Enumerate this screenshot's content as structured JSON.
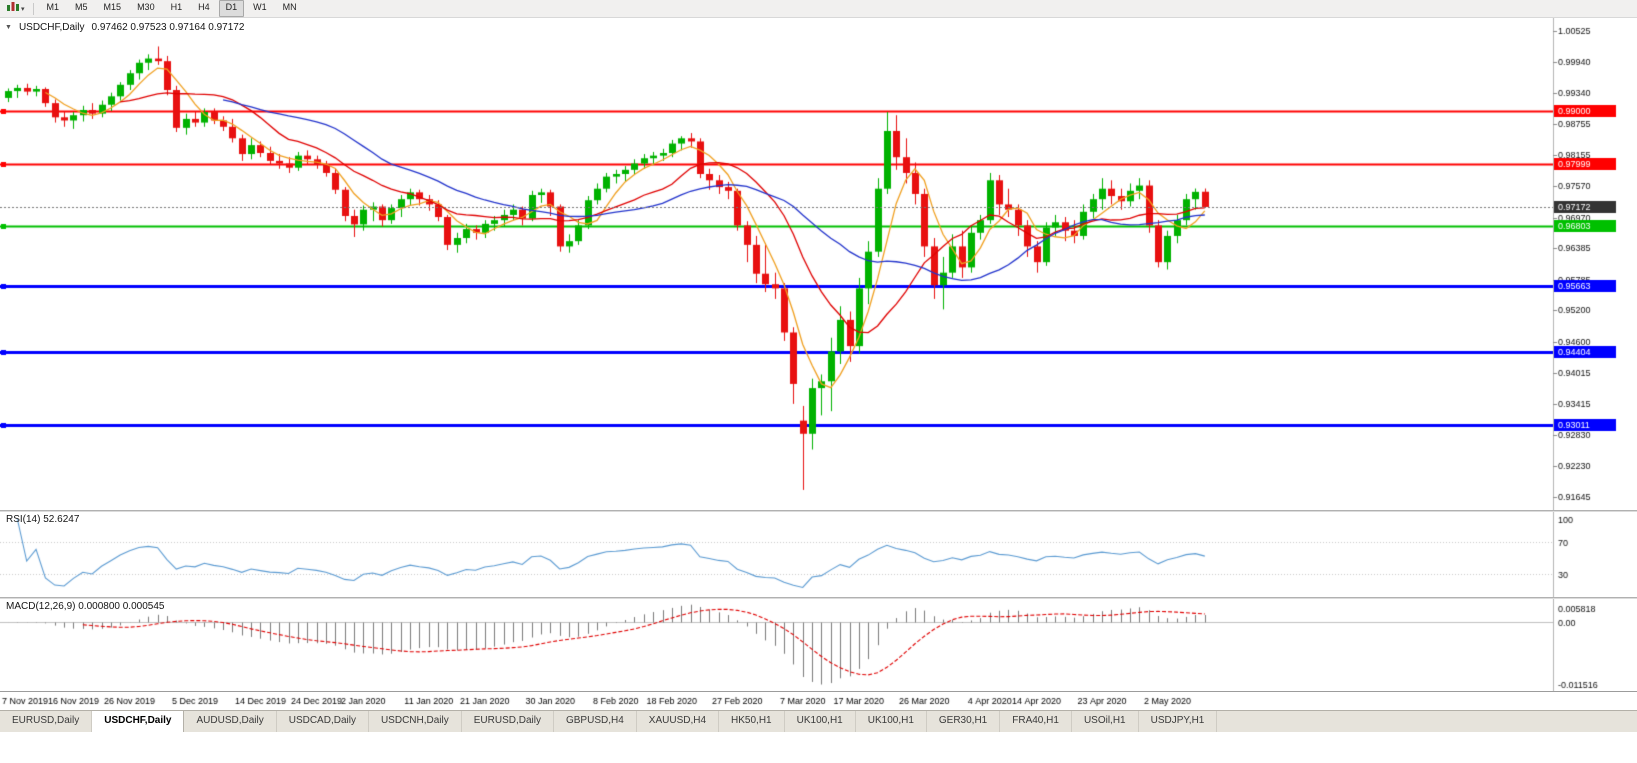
{
  "icons": {
    "collapse": "▼",
    "menu_caret": "▾"
  },
  "toolbar": {
    "timeframes": [
      "M1",
      "M5",
      "M15",
      "M30",
      "H1",
      "H4",
      "D1",
      "W1",
      "MN"
    ],
    "active_timeframe": "D1"
  },
  "chart": {
    "symbol": "USDCHF,Daily",
    "ohlc_text": "0.97462 0.97523 0.97164 0.97172",
    "open": "0.97462",
    "high": "0.97523",
    "low": "0.97164",
    "close": "0.97172",
    "bid": 0.97172,
    "bid_label": "0.97172",
    "price_axis": {
      "top_price": 1.00525,
      "bottom_price": 0.91645,
      "ticks": [
        1.00525,
        0.9994,
        0.9934,
        0.98755,
        0.98155,
        0.9757,
        0.9697,
        0.96385,
        0.95785,
        0.952,
        0.946,
        0.94015,
        0.93415,
        0.9283,
        0.9223,
        0.91645
      ]
    },
    "hlines": [
      {
        "price": 0.99,
        "label": "0.99000",
        "color": "#FF0000",
        "width": 2
      },
      {
        "price": 0.97999,
        "label": "0.97999",
        "color": "#FF0000",
        "width": 2
      },
      {
        "price": 0.96803,
        "label": "0.96803",
        "color": "#00C000",
        "width": 2
      },
      {
        "price": 0.95663,
        "label": "0.95663",
        "color": "#0000FF",
        "width": 3
      },
      {
        "price": 0.94404,
        "label": "0.94404",
        "color": "#0000FF",
        "width": 3
      },
      {
        "price": 0.93011,
        "label": "0.93011",
        "color": "#0000FF",
        "width": 3
      }
    ]
  },
  "colors": {
    "background": "#FFFFFF",
    "up_candle": "#00B200",
    "down_candle": "#E81010",
    "bid_line": "#777777",
    "bid_label_bg": "#333333",
    "axis_text": "#111111",
    "rsi_line": "#5A9AD2",
    "macd_histogram": "#7A7A7A",
    "macd_signal": "#E00000"
  },
  "chart_data": {
    "type": "candlestick",
    "symbol": "USDCHF",
    "timeframe": "Daily",
    "ylim": [
      0.91645,
      1.00525
    ],
    "x_labels": [
      {
        "label": "7 Nov 2019",
        "index": 0
      },
      {
        "label": "16 Nov 2019",
        "index": 7
      },
      {
        "label": "26 Nov 2019",
        "index": 13
      },
      {
        "label": "5 Dec 2019",
        "index": 20
      },
      {
        "label": "14 Dec 2019",
        "index": 27
      },
      {
        "label": "24 Dec 2019",
        "index": 33
      },
      {
        "label": "2 Jan 2020",
        "index": 38
      },
      {
        "label": "11 Jan 2020",
        "index": 45
      },
      {
        "label": "21 Jan 2020",
        "index": 51
      },
      {
        "label": "30 Jan 2020",
        "index": 58
      },
      {
        "label": "8 Feb 2020",
        "index": 65
      },
      {
        "label": "18 Feb 2020",
        "index": 71
      },
      {
        "label": "27 Feb 2020",
        "index": 78
      },
      {
        "label": "7 Mar 2020",
        "index": 85
      },
      {
        "label": "17 Mar 2020",
        "index": 91
      },
      {
        "label": "26 Mar 2020",
        "index": 98
      },
      {
        "label": "4 Apr 2020",
        "index": 105
      },
      {
        "label": "14 Apr 2020",
        "index": 110
      },
      {
        "label": "23 Apr 2020",
        "index": 117
      },
      {
        "label": "2 May 2020",
        "index": 124
      }
    ],
    "moving_averages": [
      {
        "period": 5,
        "color": "#F0A020"
      },
      {
        "period": 13,
        "color": "#E00000"
      },
      {
        "period": 24,
        "color": "#2233CC"
      }
    ],
    "candles": [
      [
        0.9925,
        0.9943,
        0.9917,
        0.9938
      ],
      [
        0.9938,
        0.995,
        0.9925,
        0.9944
      ],
      [
        0.9944,
        0.9952,
        0.993,
        0.9937
      ],
      [
        0.9937,
        0.9948,
        0.9928,
        0.9942
      ],
      [
        0.9942,
        0.9945,
        0.9908,
        0.9915
      ],
      [
        0.9915,
        0.9922,
        0.9878,
        0.9888
      ],
      [
        0.9888,
        0.99,
        0.987,
        0.9882
      ],
      [
        0.9882,
        0.9898,
        0.9866,
        0.9892
      ],
      [
        0.9892,
        0.991,
        0.988,
        0.9902
      ],
      [
        0.9902,
        0.9915,
        0.9885,
        0.9895
      ],
      [
        0.9895,
        0.992,
        0.9888,
        0.9912
      ],
      [
        0.9912,
        0.9935,
        0.99,
        0.9928
      ],
      [
        0.9928,
        0.9955,
        0.992,
        0.995
      ],
      [
        0.995,
        0.9978,
        0.994,
        0.9972
      ],
      [
        0.9972,
        0.9998,
        0.996,
        0.9992
      ],
      [
        0.9992,
        1.0008,
        0.9978,
        1.0
      ],
      [
        1.0,
        1.0023,
        0.9988,
        0.9995
      ],
      [
        0.9995,
        1.0005,
        0.993,
        0.994
      ],
      [
        0.994,
        0.9948,
        0.986,
        0.9868
      ],
      [
        0.9868,
        0.9895,
        0.9855,
        0.9885
      ],
      [
        0.9885,
        0.99,
        0.987,
        0.9878
      ],
      [
        0.9878,
        0.9905,
        0.987,
        0.9898
      ],
      [
        0.9898,
        0.9905,
        0.9875,
        0.9882
      ],
      [
        0.9882,
        0.989,
        0.9862,
        0.987
      ],
      [
        0.987,
        0.9885,
        0.984,
        0.9848
      ],
      [
        0.9848,
        0.9855,
        0.9805,
        0.9818
      ],
      [
        0.9818,
        0.9848,
        0.9808,
        0.9835
      ],
      [
        0.9835,
        0.9842,
        0.9812,
        0.982
      ],
      [
        0.982,
        0.9832,
        0.9798,
        0.9805
      ],
      [
        0.9805,
        0.9818,
        0.979,
        0.98
      ],
      [
        0.98,
        0.9812,
        0.9782,
        0.9792
      ],
      [
        0.9792,
        0.9822,
        0.9786,
        0.9815
      ],
      [
        0.9815,
        0.9825,
        0.9798,
        0.9808
      ],
      [
        0.9808,
        0.9815,
        0.979,
        0.9798
      ],
      [
        0.9798,
        0.9805,
        0.9775,
        0.9782
      ],
      [
        0.9782,
        0.979,
        0.9742,
        0.975
      ],
      [
        0.975,
        0.9755,
        0.969,
        0.97
      ],
      [
        0.97,
        0.9712,
        0.966,
        0.9684
      ],
      [
        0.9684,
        0.972,
        0.9672,
        0.9712
      ],
      [
        0.9712,
        0.9726,
        0.969,
        0.9718
      ],
      [
        0.9718,
        0.9722,
        0.968,
        0.9692
      ],
      [
        0.9692,
        0.9722,
        0.9685,
        0.9715
      ],
      [
        0.9715,
        0.974,
        0.9698,
        0.9732
      ],
      [
        0.9732,
        0.9752,
        0.972,
        0.9745
      ],
      [
        0.9745,
        0.975,
        0.972,
        0.9732
      ],
      [
        0.9732,
        0.974,
        0.971,
        0.9722
      ],
      [
        0.9722,
        0.973,
        0.969,
        0.9698
      ],
      [
        0.9698,
        0.9702,
        0.9635,
        0.9645
      ],
      [
        0.9645,
        0.9668,
        0.963,
        0.9658
      ],
      [
        0.9658,
        0.9685,
        0.9648,
        0.9675
      ],
      [
        0.9675,
        0.9682,
        0.9655,
        0.9668
      ],
      [
        0.9668,
        0.9692,
        0.9658,
        0.9685
      ],
      [
        0.9685,
        0.97,
        0.9672,
        0.9692
      ],
      [
        0.9692,
        0.9712,
        0.968,
        0.9702
      ],
      [
        0.9702,
        0.9722,
        0.9692,
        0.9712
      ],
      [
        0.9712,
        0.9718,
        0.9682,
        0.9695
      ],
      [
        0.9695,
        0.9748,
        0.969,
        0.974
      ],
      [
        0.974,
        0.9752,
        0.9725,
        0.9745
      ],
      [
        0.9745,
        0.975,
        0.97,
        0.9718
      ],
      [
        0.9718,
        0.9722,
        0.9632,
        0.9642
      ],
      [
        0.9642,
        0.9665,
        0.963,
        0.9652
      ],
      [
        0.9652,
        0.9692,
        0.9645,
        0.9682
      ],
      [
        0.9682,
        0.9738,
        0.9675,
        0.973
      ],
      [
        0.973,
        0.9762,
        0.9722,
        0.9752
      ],
      [
        0.9752,
        0.9782,
        0.9745,
        0.9775
      ],
      [
        0.9775,
        0.9788,
        0.9762,
        0.978
      ],
      [
        0.978,
        0.9795,
        0.9765,
        0.9788
      ],
      [
        0.9788,
        0.9808,
        0.9778,
        0.98
      ],
      [
        0.98,
        0.9818,
        0.979,
        0.981
      ],
      [
        0.981,
        0.9822,
        0.9798,
        0.9815
      ],
      [
        0.9815,
        0.9828,
        0.9805,
        0.982
      ],
      [
        0.982,
        0.9845,
        0.9812,
        0.9838
      ],
      [
        0.9838,
        0.9852,
        0.9825,
        0.9848
      ],
      [
        0.9848,
        0.9858,
        0.983,
        0.9842
      ],
      [
        0.9842,
        0.9848,
        0.9772,
        0.978
      ],
      [
        0.978,
        0.979,
        0.975,
        0.9768
      ],
      [
        0.9768,
        0.9778,
        0.9742,
        0.9755
      ],
      [
        0.9755,
        0.9765,
        0.9732,
        0.9748
      ],
      [
        0.9748,
        0.9752,
        0.9672,
        0.9682
      ],
      [
        0.9682,
        0.969,
        0.9612,
        0.9645
      ],
      [
        0.9645,
        0.9662,
        0.9572,
        0.959
      ],
      [
        0.959,
        0.9648,
        0.9555,
        0.957
      ],
      [
        0.957,
        0.9592,
        0.9542,
        0.9562
      ],
      [
        0.9562,
        0.9572,
        0.9462,
        0.9478
      ],
      [
        0.9478,
        0.9488,
        0.9342,
        0.938
      ],
      [
        0.931,
        0.9338,
        0.9178,
        0.9285
      ],
      [
        0.9285,
        0.939,
        0.9255,
        0.9372
      ],
      [
        0.9372,
        0.9398,
        0.932,
        0.9385
      ],
      [
        0.9385,
        0.9468,
        0.9328,
        0.9442
      ],
      [
        0.9442,
        0.9528,
        0.9418,
        0.9502
      ],
      [
        0.9502,
        0.9518,
        0.9422,
        0.9452
      ],
      [
        0.9452,
        0.9582,
        0.9438,
        0.9562
      ],
      [
        0.9562,
        0.9652,
        0.9532,
        0.9632
      ],
      [
        0.9632,
        0.9772,
        0.9622,
        0.9752
      ],
      [
        0.9752,
        0.9898,
        0.9742,
        0.9862
      ],
      [
        0.9862,
        0.9892,
        0.9788,
        0.9812
      ],
      [
        0.9812,
        0.9848,
        0.9762,
        0.9782
      ],
      [
        0.9782,
        0.9802,
        0.9722,
        0.9742
      ],
      [
        0.9742,
        0.9752,
        0.9622,
        0.9642
      ],
      [
        0.9642,
        0.9658,
        0.9542,
        0.9568
      ],
      [
        0.9568,
        0.9622,
        0.9522,
        0.9592
      ],
      [
        0.9592,
        0.9665,
        0.9582,
        0.9642
      ],
      [
        0.9642,
        0.9672,
        0.9582,
        0.9602
      ],
      [
        0.9602,
        0.9682,
        0.9592,
        0.9668
      ],
      [
        0.9668,
        0.9702,
        0.9655,
        0.9692
      ],
      [
        0.9692,
        0.9782,
        0.9685,
        0.9768
      ],
      [
        0.9768,
        0.9778,
        0.9702,
        0.9722
      ],
      [
        0.9722,
        0.9752,
        0.9698,
        0.9712
      ],
      [
        0.9712,
        0.9722,
        0.9662,
        0.9682
      ],
      [
        0.9682,
        0.9692,
        0.9622,
        0.9642
      ],
      [
        0.9642,
        0.9652,
        0.9592,
        0.9612
      ],
      [
        0.9612,
        0.9688,
        0.9605,
        0.9678
      ],
      [
        0.9678,
        0.9702,
        0.9662,
        0.9688
      ],
      [
        0.9688,
        0.9698,
        0.9652,
        0.9672
      ],
      [
        0.9672,
        0.9692,
        0.9648,
        0.9662
      ],
      [
        0.9662,
        0.9722,
        0.9655,
        0.9708
      ],
      [
        0.9708,
        0.9742,
        0.9695,
        0.9732
      ],
      [
        0.9732,
        0.9772,
        0.9712,
        0.9752
      ],
      [
        0.9752,
        0.9768,
        0.9722,
        0.9738
      ],
      [
        0.9738,
        0.9752,
        0.9712,
        0.9728
      ],
      [
        0.9728,
        0.9762,
        0.9718,
        0.9748
      ],
      [
        0.9748,
        0.9772,
        0.9732,
        0.9758
      ],
      [
        0.9758,
        0.9768,
        0.9668,
        0.9682
      ],
      [
        0.9682,
        0.9692,
        0.9602,
        0.9612
      ],
      [
        0.9612,
        0.9672,
        0.9598,
        0.9662
      ],
      [
        0.9662,
        0.9702,
        0.9648,
        0.9692
      ],
      [
        0.9692,
        0.9742,
        0.9682,
        0.9732
      ],
      [
        0.9732,
        0.97523,
        0.9712,
        0.9746
      ],
      [
        0.97462,
        0.97523,
        0.97164,
        0.97172
      ]
    ]
  },
  "rsi": {
    "label": "RSI(14) 52.6247",
    "period": 14,
    "value": "52.6247",
    "levels": [
      "100",
      "70",
      "30"
    ],
    "level_values": [
      100,
      70,
      30
    ]
  },
  "macd": {
    "label": "MACD(12,26,9) 0.000800 0.000545",
    "fast": 12,
    "slow": 26,
    "signal": 9,
    "macd_value": "0.000800",
    "signal_value": "0.000545",
    "scale": {
      "max_label": "0.005818",
      "zero_label": "0.00",
      "min_label": "-0.011516"
    }
  },
  "tabs": [
    {
      "label": "EURUSD,Daily",
      "active": false
    },
    {
      "label": "USDCHF,Daily",
      "active": true
    },
    {
      "label": "AUDUSD,Daily",
      "active": false
    },
    {
      "label": "USDCAD,Daily",
      "active": false
    },
    {
      "label": "USDCNH,Daily",
      "active": false
    },
    {
      "label": "EURUSD,Daily",
      "active": false
    },
    {
      "label": "GBPUSD,H4",
      "active": false
    },
    {
      "label": "XAUUSD,H4",
      "active": false
    },
    {
      "label": "HK50,H1",
      "active": false
    },
    {
      "label": "UK100,H1",
      "active": false
    },
    {
      "label": "UK100,H1",
      "active": false
    },
    {
      "label": "GER30,H1",
      "active": false
    },
    {
      "label": "FRA40,H1",
      "active": false
    },
    {
      "label": "USOil,H1",
      "active": false
    },
    {
      "label": "USDJPY,H1",
      "active": false
    }
  ]
}
